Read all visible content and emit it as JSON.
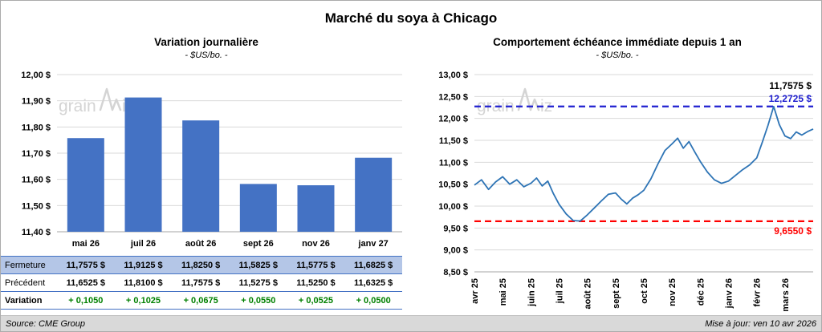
{
  "header": {
    "title": "Marché du soya à Chicago"
  },
  "watermark": "grainwiz",
  "colors": {
    "bar": "#4472C4",
    "line": "#2E74B5",
    "table_row_fill": "#B4C6E7",
    "table_border": "#4472C4",
    "variation_green": "#008000",
    "ref_max_blue": "#2020D0",
    "ref_min_red": "#FF0000",
    "grid": "#D9D9D9"
  },
  "chart_data": [
    {
      "type": "bar",
      "title": "Variation journalière",
      "subtitle": "- $US/bo. -",
      "categories": [
        "mai 26",
        "juil 26",
        "août 26",
        "sept 26",
        "nov 26",
        "janv 27"
      ],
      "values": [
        11.7575,
        11.9125,
        11.825,
        11.5825,
        11.5775,
        11.6825
      ],
      "ylim": [
        11.4,
        12.0
      ],
      "ytick_labels": [
        "12,00 $",
        "11,90 $",
        "11,80 $",
        "11,70 $",
        "11,60 $",
        "11,50 $",
        "11,40 $"
      ],
      "bar_color": "#4472C4",
      "grid": "horizontal"
    },
    {
      "type": "line",
      "title": "Comportement échéance immédiate depuis 1 an",
      "subtitle": "- $US/bo. -",
      "x_tick_labels": [
        "avr 25",
        "mai 25",
        "juin 25",
        "juil 25",
        "août 25",
        "sept 25",
        "oct 25",
        "nov 25",
        "déc 25",
        "janv 26",
        "févr 26",
        "mars 26"
      ],
      "ylim": [
        8.5,
        13.0
      ],
      "ytick_labels": [
        "13,00 $",
        "12,50 $",
        "12,00 $",
        "11,50 $",
        "11,00 $",
        "10,50 $",
        "10,00 $",
        "9,50 $",
        "9,00 $",
        "8,50 $"
      ],
      "line_color": "#2E74B5",
      "grid": "horizontal",
      "points": [
        [
          0,
          10.48
        ],
        [
          0.25,
          10.6
        ],
        [
          0.5,
          10.38
        ],
        [
          0.75,
          10.55
        ],
        [
          1,
          10.67
        ],
        [
          1.25,
          10.5
        ],
        [
          1.5,
          10.6
        ],
        [
          1.75,
          10.44
        ],
        [
          2,
          10.52
        ],
        [
          2.2,
          10.64
        ],
        [
          2.4,
          10.46
        ],
        [
          2.6,
          10.57
        ],
        [
          2.8,
          10.28
        ],
        [
          3,
          10.04
        ],
        [
          3.25,
          9.82
        ],
        [
          3.5,
          9.67
        ],
        [
          3.75,
          9.66
        ],
        [
          4,
          9.8
        ],
        [
          4.25,
          9.96
        ],
        [
          4.5,
          10.12
        ],
        [
          4.75,
          10.27
        ],
        [
          5,
          10.3
        ],
        [
          5.2,
          10.16
        ],
        [
          5.4,
          10.05
        ],
        [
          5.6,
          10.18
        ],
        [
          5.8,
          10.26
        ],
        [
          6,
          10.36
        ],
        [
          6.25,
          10.62
        ],
        [
          6.5,
          10.96
        ],
        [
          6.75,
          11.27
        ],
        [
          7,
          11.42
        ],
        [
          7.2,
          11.55
        ],
        [
          7.4,
          11.32
        ],
        [
          7.6,
          11.47
        ],
        [
          7.8,
          11.24
        ],
        [
          8,
          11.02
        ],
        [
          8.25,
          10.78
        ],
        [
          8.5,
          10.6
        ],
        [
          8.75,
          10.52
        ],
        [
          9,
          10.57
        ],
        [
          9.25,
          10.7
        ],
        [
          9.5,
          10.83
        ],
        [
          9.75,
          10.94
        ],
        [
          10,
          11.1
        ],
        [
          10.2,
          11.46
        ],
        [
          10.4,
          11.84
        ],
        [
          10.6,
          12.2725
        ],
        [
          10.8,
          11.86
        ],
        [
          11,
          11.6
        ],
        [
          11.2,
          11.54
        ],
        [
          11.4,
          11.69
        ],
        [
          11.6,
          11.62
        ],
        [
          11.8,
          11.7
        ],
        [
          12,
          11.7575
        ]
      ],
      "ref_lines": [
        {
          "value": 12.2725,
          "label": "12,2725 $",
          "color": "#2020D0",
          "label_side": "above"
        },
        {
          "value": 9.655,
          "label": "9,6550 $",
          "color": "#FF0000",
          "label_side": "below"
        }
      ],
      "last_label": {
        "text": "11,7575 $",
        "color": "#000000"
      }
    }
  ],
  "table": {
    "rows": [
      {
        "style": "fermeture",
        "label": "Fermeture",
        "values": [
          "11,7575  $",
          "11,9125  $",
          "11,8250  $",
          "11,5825  $",
          "11,5775  $",
          "11,6825  $"
        ]
      },
      {
        "style": "precedent",
        "label": "Précédent",
        "values": [
          "11,6525  $",
          "11,8100  $",
          "11,7575  $",
          "11,5275  $",
          "11,5250  $",
          "11,6325  $"
        ]
      },
      {
        "style": "variation",
        "label": "Variation",
        "values": [
          "+ 0,1050",
          "+ 0,1025",
          "+ 0,0675",
          "+ 0,0550",
          "+ 0,0525",
          "+ 0,0500"
        ]
      }
    ]
  },
  "footer": {
    "source": "Source: CME Group",
    "updated": "Mise à jour: ven 10 avr 2026"
  }
}
